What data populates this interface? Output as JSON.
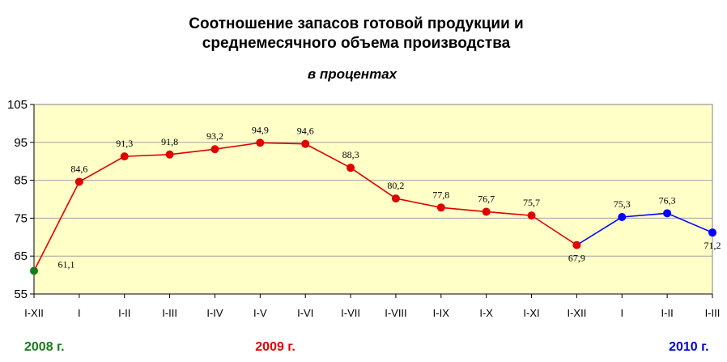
{
  "title_line1": "Соотношение запасов готовой продукции и",
  "title_line2": "среднемесячного объема производства",
  "subtitle": "в процентах",
  "years": [
    {
      "label": "2008 г.",
      "color": "#1a7a1a"
    },
    {
      "label": "2009 г.",
      "color": "#e00000"
    },
    {
      "label": "2010 г.",
      "color": "#0000d0"
    }
  ],
  "colors": {
    "plot_background": "#ffffc8",
    "series_2008": "#1a7a1a",
    "series_2009": "#e00000",
    "series_2010": "#0000ff",
    "grid": "#a0a0a0"
  },
  "chart_data": {
    "type": "line",
    "categories": [
      "I-XII",
      "I",
      "I-II",
      "I-III",
      "I-IV",
      "I-V",
      "I-VI",
      "I-VII",
      "I-VIII",
      "I-IX",
      "I-X",
      "I-XI",
      "I-XII",
      "I",
      "I-II",
      "I-III"
    ],
    "series": [
      {
        "year": "2008 г.",
        "values": [
          61.1,
          null,
          null,
          null,
          null,
          null,
          null,
          null,
          null,
          null,
          null,
          null,
          null,
          null,
          null,
          null
        ]
      },
      {
        "year": "2009 г.",
        "values": [
          null,
          84.6,
          91.3,
          91.8,
          93.2,
          94.9,
          94.6,
          88.3,
          80.2,
          77.8,
          76.7,
          75.7,
          67.9,
          null,
          null,
          null
        ]
      },
      {
        "year": "2010 г.",
        "values": [
          null,
          null,
          null,
          null,
          null,
          null,
          null,
          null,
          null,
          null,
          null,
          null,
          null,
          75.3,
          76.3,
          71.2
        ]
      }
    ],
    "point_labels": [
      "61,1",
      "84,6",
      "91,3",
      "91,8",
      "93,2",
      "94,9",
      "94,6",
      "88,3",
      "80,2",
      "77,8",
      "76,7",
      "75,7",
      "67,9",
      "75,3",
      "76,3",
      "71,2"
    ],
    "label_position": [
      "right-below",
      "above",
      "above",
      "above",
      "above",
      "above",
      "above",
      "above",
      "above",
      "above",
      "above",
      "above",
      "below",
      "above",
      "above",
      "below"
    ],
    "ylim": [
      55,
      105
    ],
    "yticks": [
      "55",
      "65",
      "75",
      "85",
      "95",
      "105"
    ],
    "grid": true,
    "legend": "none"
  }
}
